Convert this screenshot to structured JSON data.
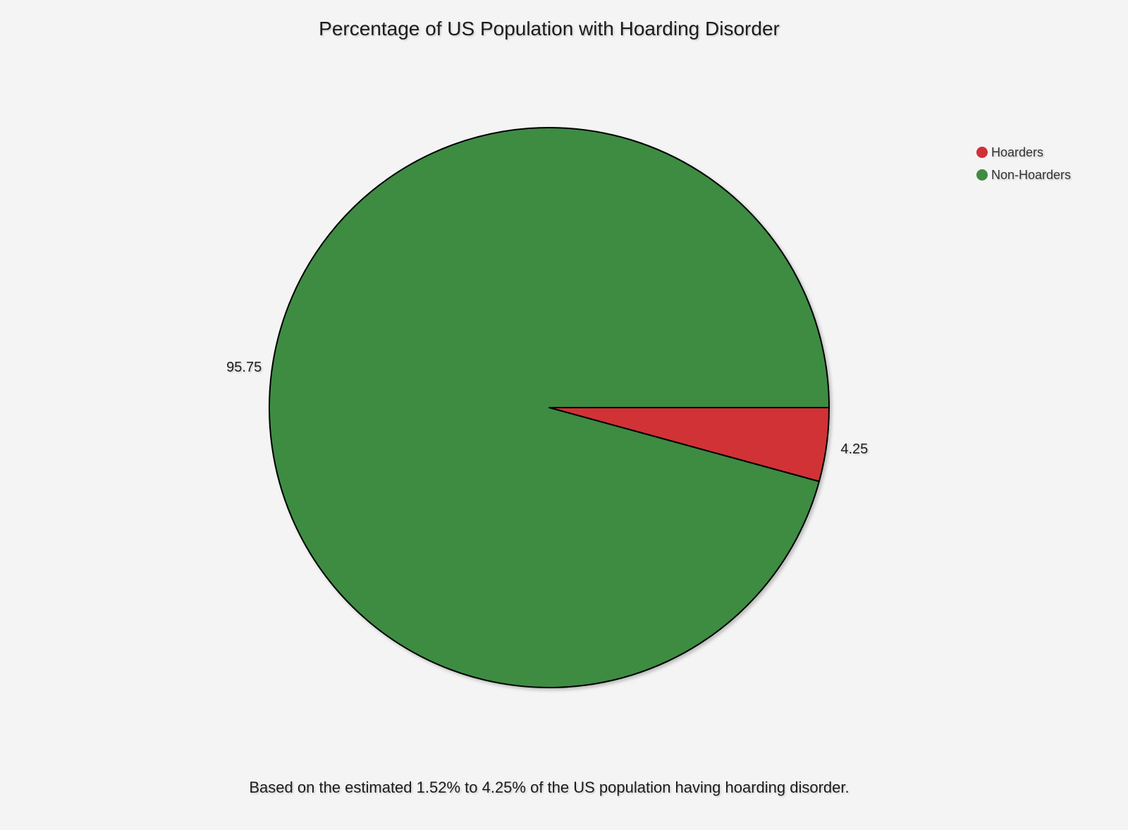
{
  "chart_data": {
    "type": "pie",
    "title": "Percentage of US Population with Hoarding Disorder",
    "caption": "Based on the estimated 1.52% to 4.25% of the US population having hoarding disorder.",
    "slices": [
      {
        "label": "Hoarders",
        "value": 4.25,
        "display": "4.25",
        "color": "#d13036"
      },
      {
        "label": "Non-Hoarders",
        "value": 95.75,
        "display": "95.75",
        "color": "#3e8c42"
      }
    ],
    "start_angle_deg": 0,
    "direction": "clockwise",
    "legend_position": "top-right",
    "edge_color": "#000000"
  }
}
